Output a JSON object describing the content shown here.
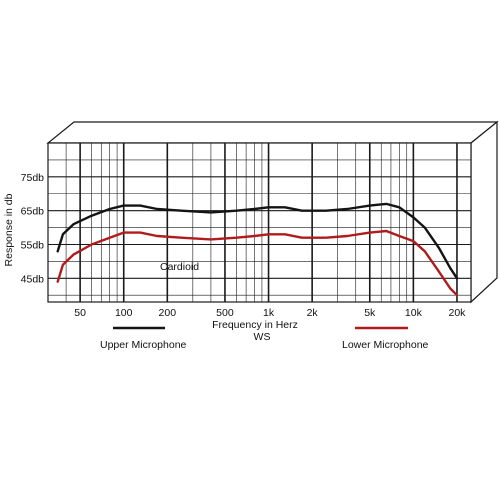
{
  "chart_data": {
    "type": "line",
    "xlabel": "Frequency in Herz",
    "xlabel_sub": "WS",
    "ylabel": "Response in db",
    "annotation": "Cardioid",
    "x_scale": "log",
    "xlim": [
      30,
      25000
    ],
    "ylim": [
      38,
      85
    ],
    "grid": true,
    "x_ticks": [
      {
        "value": 50,
        "label": "50"
      },
      {
        "value": 100,
        "label": "100"
      },
      {
        "value": 200,
        "label": "200"
      },
      {
        "value": 500,
        "label": "500"
      },
      {
        "value": 1000,
        "label": "1k"
      },
      {
        "value": 2000,
        "label": "2k"
      },
      {
        "value": 5000,
        "label": "5k"
      },
      {
        "value": 10000,
        "label": "10k"
      },
      {
        "value": 20000,
        "label": "20k"
      }
    ],
    "y_ticks": [
      {
        "value": 45,
        "label": "45db"
      },
      {
        "value": 55,
        "label": "55db"
      },
      {
        "value": 65,
        "label": "65db"
      },
      {
        "value": 75,
        "label": "75db"
      }
    ],
    "series": [
      {
        "name": "Upper Microphone",
        "color": "#141414",
        "points": [
          [
            35,
            53
          ],
          [
            38,
            58
          ],
          [
            45,
            61
          ],
          [
            60,
            63.5
          ],
          [
            80,
            65.5
          ],
          [
            100,
            66.5
          ],
          [
            130,
            66.5
          ],
          [
            170,
            65.5
          ],
          [
            250,
            65
          ],
          [
            400,
            64.5
          ],
          [
            600,
            65
          ],
          [
            800,
            65.5
          ],
          [
            1000,
            66
          ],
          [
            1300,
            66
          ],
          [
            1700,
            65
          ],
          [
            2500,
            65
          ],
          [
            3500,
            65.5
          ],
          [
            5000,
            66.5
          ],
          [
            6500,
            67
          ],
          [
            8000,
            66
          ],
          [
            10000,
            63
          ],
          [
            12000,
            60
          ],
          [
            15000,
            54
          ],
          [
            18000,
            48
          ],
          [
            20000,
            45
          ]
        ]
      },
      {
        "name": "Lower Microphone",
        "color": "#b01c1c",
        "points": [
          [
            35,
            44
          ],
          [
            38,
            49
          ],
          [
            45,
            52
          ],
          [
            60,
            55
          ],
          [
            80,
            57
          ],
          [
            100,
            58.5
          ],
          [
            130,
            58.5
          ],
          [
            170,
            57.5
          ],
          [
            250,
            57
          ],
          [
            400,
            56.5
          ],
          [
            600,
            57
          ],
          [
            800,
            57.5
          ],
          [
            1000,
            58
          ],
          [
            1300,
            58
          ],
          [
            1700,
            57
          ],
          [
            2500,
            57
          ],
          [
            3500,
            57.5
          ],
          [
            5000,
            58.5
          ],
          [
            6500,
            59
          ],
          [
            8000,
            57.5
          ],
          [
            10000,
            56
          ],
          [
            12000,
            53
          ],
          [
            15000,
            47
          ],
          [
            18000,
            42
          ],
          [
            20000,
            40
          ]
        ]
      }
    ]
  }
}
